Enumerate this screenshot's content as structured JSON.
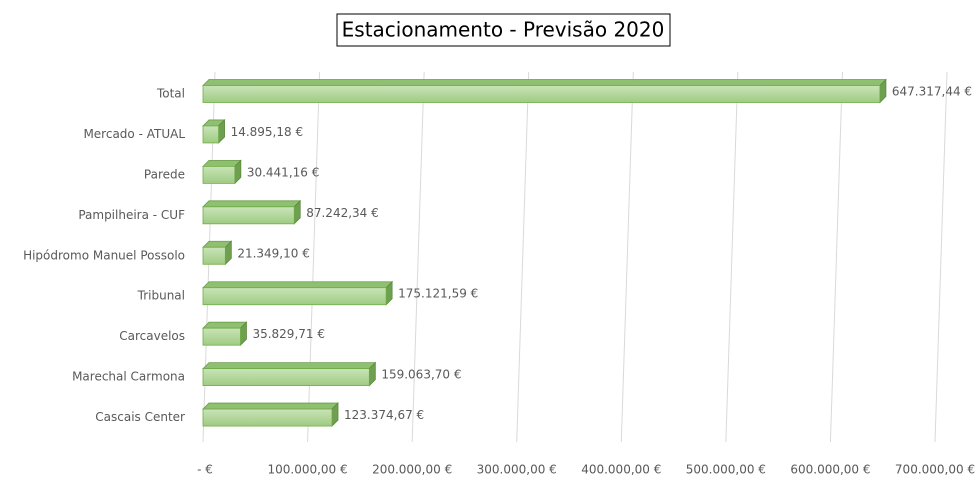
{
  "chart_data": {
    "type": "bar",
    "orientation": "horizontal",
    "title": "Estacionamento - Previsão 2020",
    "categories": [
      "Total",
      "Mercado - ATUAL",
      "Parede",
      "Pampilheira - CUF",
      "Hipódromo Manuel Possolo",
      "Tribunal",
      "Carcavelos",
      "Marechal Carmona",
      "Cascais Center"
    ],
    "values": [
      647317.44,
      14895.18,
      30441.16,
      87242.34,
      21349.1,
      175121.59,
      35829.71,
      159063.7,
      123374.67
    ],
    "value_labels": [
      "647.317,44 €",
      "14.895,18 €",
      "30.441,16 €",
      "87.242,34 €",
      "21.349,10 €",
      "175.121,59 €",
      "35.829,71 €",
      "159.063,70 €",
      "123.374,67 €"
    ],
    "color": "#a9d18e",
    "xlim": [
      0,
      700000
    ],
    "xticks": [
      {
        "value": 0,
        "label": "-  €"
      },
      {
        "value": 100000,
        "label": "100.000,00 €"
      },
      {
        "value": 200000,
        "label": "200.000,00 €"
      },
      {
        "value": 300000,
        "label": "300.000,00 €"
      },
      {
        "value": 400000,
        "label": "400.000,00 €"
      },
      {
        "value": 500000,
        "label": "500.000,00 €"
      },
      {
        "value": 600000,
        "label": "600.000,00 €"
      },
      {
        "value": 700000,
        "label": "700.000,00 €"
      }
    ],
    "grid": true
  }
}
